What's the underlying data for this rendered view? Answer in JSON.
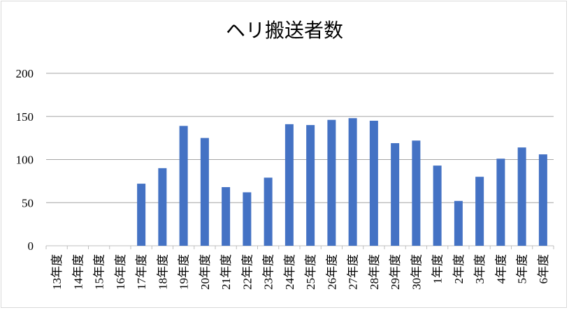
{
  "chart_data": {
    "type": "bar",
    "title": "ヘリ搬送者数",
    "categories": [
      "13年度",
      "14年度",
      "15年度",
      "16年度",
      "17年度",
      "18年度",
      "19年度",
      "20年度",
      "21年度",
      "22年度",
      "23年度",
      "24年度",
      "25年度",
      "26年度",
      "27年度",
      "28年度",
      "29年度",
      "30年度",
      "1年度",
      "2年度",
      "3年度",
      "4年度",
      "5年度",
      "6年度"
    ],
    "values": [
      0,
      0,
      0,
      0,
      72,
      90,
      139,
      125,
      68,
      62,
      79,
      141,
      140,
      146,
      148,
      145,
      119,
      122,
      93,
      52,
      80,
      101,
      114,
      106
    ],
    "ylim": [
      0,
      200
    ],
    "yticks": [
      0,
      50,
      100,
      150,
      200
    ],
    "grid": true,
    "legend": "none",
    "bar_color": "#4472c4"
  }
}
